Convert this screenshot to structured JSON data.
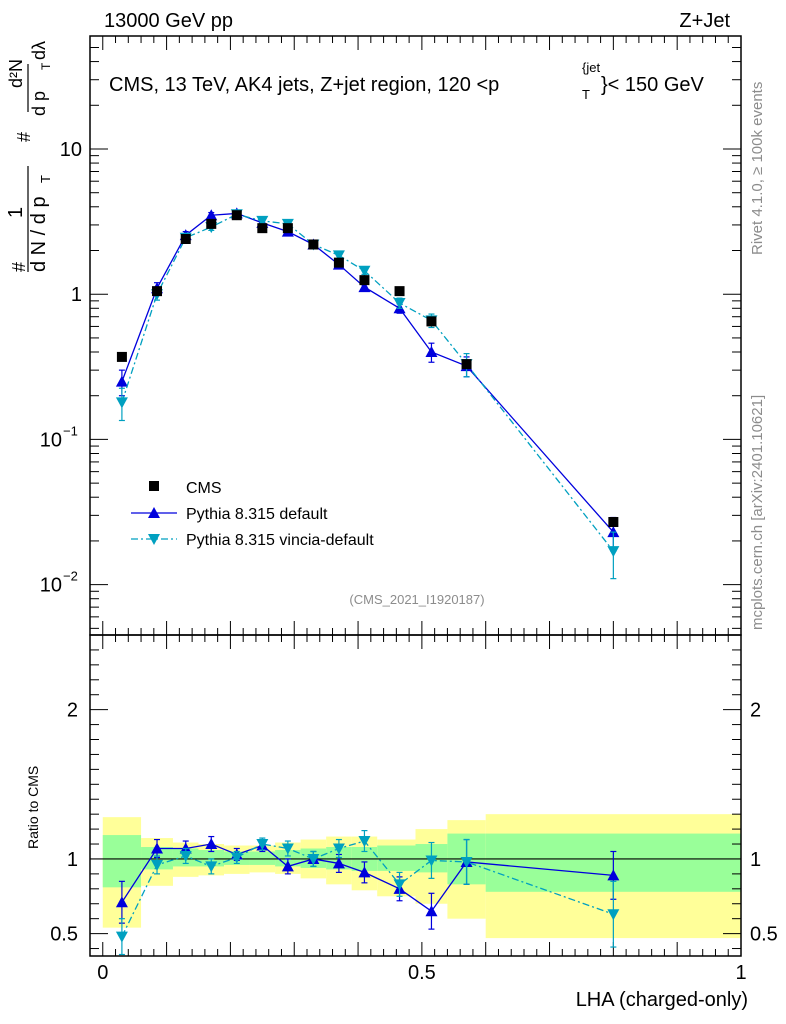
{
  "header": {
    "left": "13000 GeV pp",
    "right": "Z+Jet"
  },
  "side_labels": {
    "rivet": "Rivet 4.1.0, ≥ 100k events",
    "mcplots": "mcplots.cern.ch [arXiv:2401.10621]"
  },
  "colors": {
    "cms": "#000000",
    "pythia_default": "#0000dd",
    "pythia_vincia": "#00a0c0",
    "band_inner": "#99ff99",
    "band_outer": "#ffff99"
  },
  "chart_data": [
    {
      "id": "main",
      "type": "scatter",
      "title": "CMS, 13 TeV, AK4 jets, Z+jet region, 120 <p_T^{jet}< 150 GeV",
      "title_parts": {
        "prefix": "CMS, 13 TeV, AK4 jets, Z+jet region, 120 <p",
        "sub": "T",
        "sup": "{jet",
        "suffix": "}< 150 GeV"
      },
      "ylabel": "1/(dN/dp_T) d²N/(dp_T dλ)",
      "ylabel_parts": {
        "hash": "#",
        "one": "1",
        "denom": "d N / d p",
        "numer": "d²N",
        "frac2_den": "d p",
        "T": "T",
        "dlambda": "dλ"
      },
      "yscale": "log",
      "ylim": [
        0.0045,
        60
      ],
      "xlim": [
        -0.02,
        1.0
      ],
      "yticks": [
        {
          "value": 0.01,
          "base": "10",
          "exp": "−2"
        },
        {
          "value": 0.1,
          "base": "10",
          "exp": "−1"
        },
        {
          "value": 1,
          "base": "1",
          "exp": ""
        },
        {
          "value": 10,
          "base": "10",
          "exp": ""
        }
      ],
      "watermark": "(CMS_2021_I1920187)",
      "legend": [
        "CMS",
        "Pythia 8.315 default",
        "Pythia 8.315 vincia-default"
      ],
      "legend_position": "lower-left",
      "series": [
        {
          "name": "CMS",
          "marker": "square",
          "x": [
            0.03,
            0.085,
            0.13,
            0.17,
            0.21,
            0.25,
            0.29,
            0.33,
            0.37,
            0.41,
            0.465,
            0.515,
            0.57,
            0.8
          ],
          "y": [
            0.37,
            1.05,
            2.4,
            3.05,
            3.5,
            2.85,
            2.85,
            2.2,
            1.65,
            1.25,
            1.05,
            0.65,
            0.33,
            0.027
          ],
          "err": [
            0,
            0,
            0,
            0,
            0,
            0,
            0,
            0,
            0,
            0,
            0,
            0,
            0,
            0
          ]
        },
        {
          "name": "Pythia 8.315 default",
          "marker": "triangle-up",
          "line": "solid",
          "x": [
            0.03,
            0.085,
            0.13,
            0.17,
            0.21,
            0.25,
            0.29,
            0.33,
            0.37,
            0.41,
            0.465,
            0.515,
            0.57,
            0.8
          ],
          "y": [
            0.25,
            1.1,
            2.55,
            3.5,
            3.6,
            3.1,
            2.7,
            2.2,
            1.6,
            1.12,
            0.8,
            0.4,
            0.32,
            0.023
          ],
          "err": [
            0.05,
            0.1,
            0.15,
            0.15,
            0.15,
            0.12,
            0.12,
            0.1,
            0.08,
            0.06,
            0.06,
            0.06,
            0.05,
            0.006
          ]
        },
        {
          "name": "Pythia 8.315 vincia-default",
          "marker": "triangle-down",
          "line": "dashdot",
          "x": [
            0.03,
            0.085,
            0.13,
            0.17,
            0.21,
            0.25,
            0.29,
            0.33,
            0.37,
            0.41,
            0.465,
            0.515,
            0.57,
            0.8
          ],
          "y": [
            0.18,
            1.0,
            2.45,
            2.9,
            3.55,
            3.2,
            3.05,
            2.2,
            1.85,
            1.45,
            0.87,
            0.66,
            0.33,
            0.017
          ],
          "err": [
            0.045,
            0.09,
            0.15,
            0.15,
            0.15,
            0.12,
            0.12,
            0.1,
            0.09,
            0.08,
            0.07,
            0.07,
            0.06,
            0.006
          ]
        }
      ]
    },
    {
      "id": "ratio",
      "type": "scatter",
      "ylabel": "Ratio to CMS",
      "xlabel": "LHA (charged-only)",
      "ylim": [
        0.35,
        2.5
      ],
      "xlim": [
        -0.02,
        1.0
      ],
      "yticks": [
        "0.5",
        "1",
        "2"
      ],
      "xticks": [
        "0",
        "0.5",
        "1"
      ],
      "reference": 1,
      "bands": {
        "edges": [
          0.0,
          0.06,
          0.11,
          0.15,
          0.19,
          0.23,
          0.27,
          0.31,
          0.35,
          0.39,
          0.43,
          0.49,
          0.54,
          0.6,
          1.0
        ],
        "inner_lo": [
          0.81,
          0.93,
          0.95,
          0.95,
          0.96,
          0.96,
          0.95,
          0.94,
          0.93,
          0.92,
          0.92,
          0.91,
          0.83,
          0.78
        ],
        "inner_hi": [
          1.16,
          1.08,
          1.07,
          1.06,
          1.05,
          1.05,
          1.06,
          1.07,
          1.08,
          1.08,
          1.09,
          1.1,
          1.17,
          1.17
        ],
        "outer_lo": [
          0.54,
          0.82,
          0.88,
          0.89,
          0.9,
          0.91,
          0.9,
          0.87,
          0.83,
          0.79,
          0.75,
          0.7,
          0.6,
          0.47
        ],
        "outer_hi": [
          1.28,
          1.14,
          1.11,
          1.1,
          1.09,
          1.09,
          1.11,
          1.13,
          1.15,
          1.15,
          1.13,
          1.2,
          1.26,
          1.3
        ]
      },
      "series": [
        {
          "name": "Pythia 8.315 default",
          "marker": "triangle-up",
          "line": "solid",
          "x": [
            0.03,
            0.085,
            0.13,
            0.17,
            0.21,
            0.25,
            0.29,
            0.33,
            0.37,
            0.41,
            0.465,
            0.515,
            0.57,
            0.8
          ],
          "y": [
            0.71,
            1.07,
            1.07,
            1.1,
            1.03,
            1.09,
            0.95,
            1.0,
            0.97,
            0.91,
            0.8,
            0.65,
            0.98,
            0.89
          ],
          "err": [
            0.14,
            0.06,
            0.05,
            0.05,
            0.04,
            0.04,
            0.05,
            0.05,
            0.06,
            0.07,
            0.08,
            0.12,
            0.15,
            0.16
          ]
        },
        {
          "name": "Pythia 8.315 vincia-default",
          "marker": "triangle-down",
          "line": "dashdot",
          "x": [
            0.03,
            0.085,
            0.13,
            0.17,
            0.21,
            0.25,
            0.29,
            0.33,
            0.37,
            0.41,
            0.465,
            0.515,
            0.57,
            0.8
          ],
          "y": [
            0.48,
            0.96,
            1.02,
            0.95,
            1.01,
            1.1,
            1.07,
            1.0,
            1.07,
            1.12,
            0.83,
            0.99,
            0.98,
            0.63
          ],
          "err": [
            0.12,
            0.06,
            0.05,
            0.05,
            0.04,
            0.04,
            0.05,
            0.05,
            0.06,
            0.07,
            0.08,
            0.12,
            0.15,
            0.22
          ]
        }
      ]
    }
  ]
}
